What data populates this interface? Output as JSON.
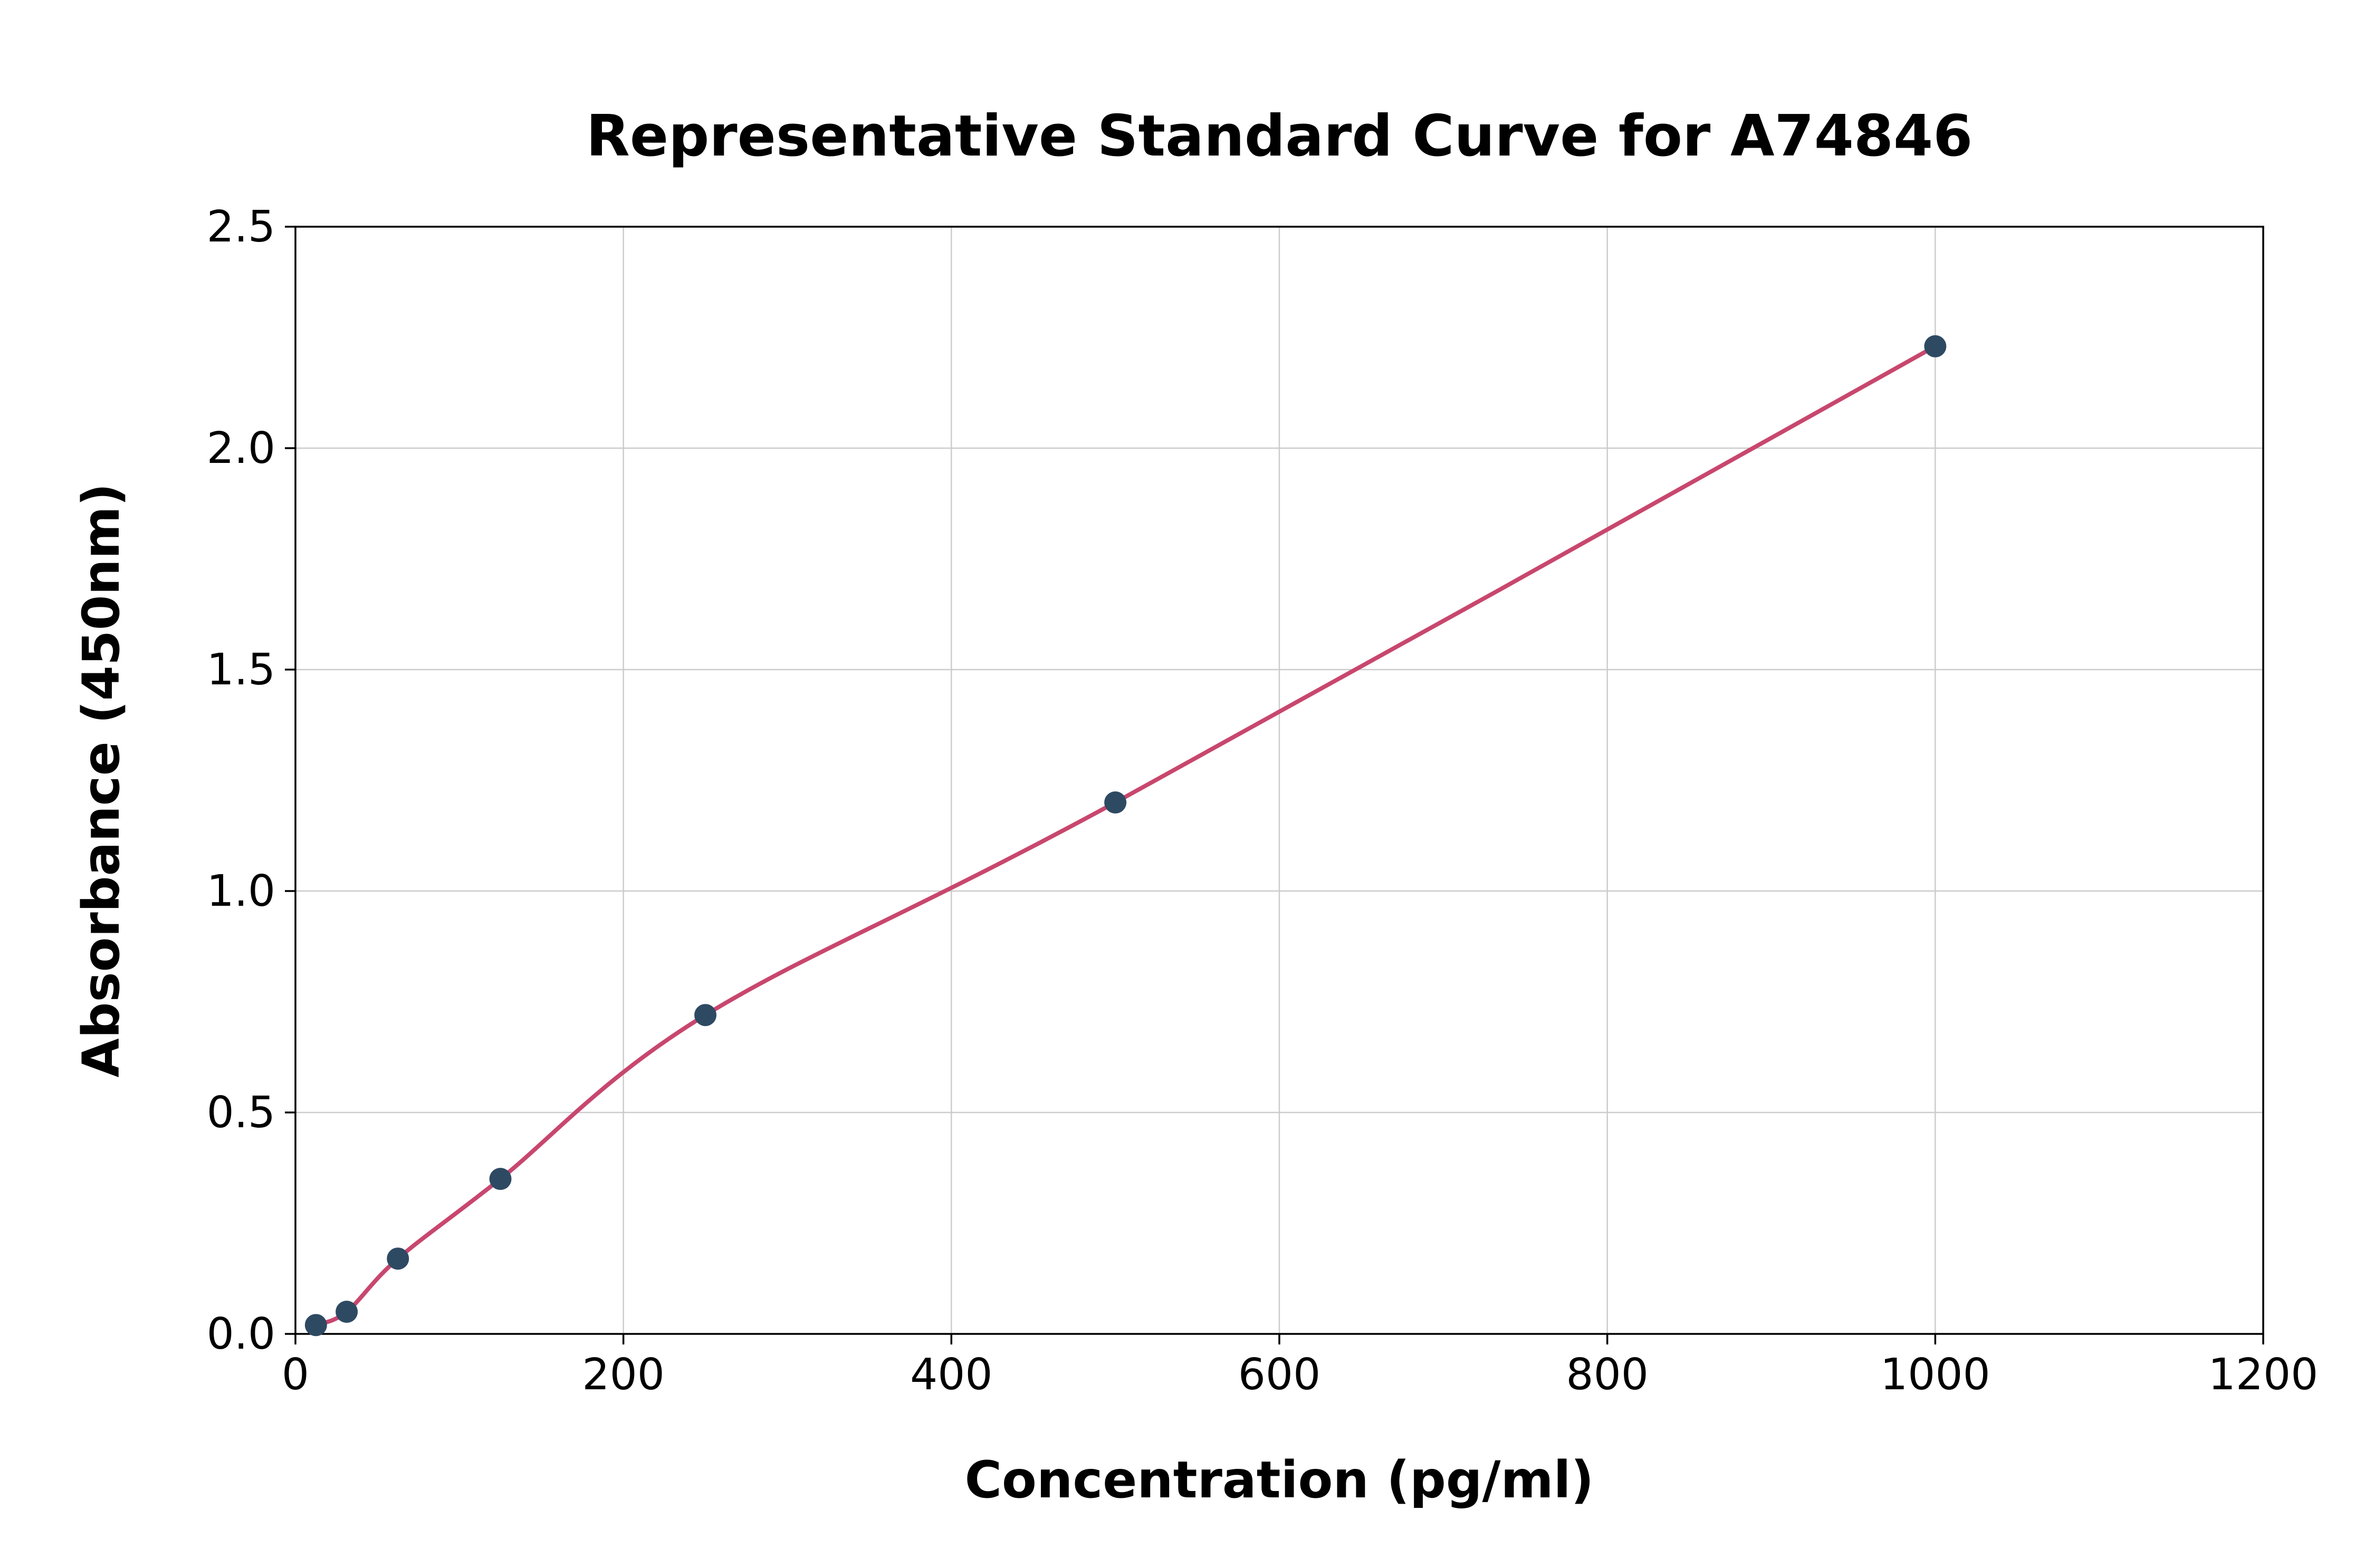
{
  "chart_data": {
    "type": "scatter",
    "title": "Representative Standard Curve for A74846",
    "xlabel": "Concentration (pg/ml)",
    "ylabel": "Absorbance (450nm)",
    "xlim": [
      0,
      1200
    ],
    "ylim": [
      0,
      2.5
    ],
    "x_ticks": [
      0,
      200,
      400,
      600,
      800,
      1000,
      1200
    ],
    "x_tick_labels": [
      "0",
      "200",
      "400",
      "600",
      "800",
      "1000",
      "1200"
    ],
    "y_ticks": [
      0.0,
      0.5,
      1.0,
      1.5,
      2.0,
      2.5
    ],
    "y_tick_labels": [
      "0.0",
      "0.5",
      "1.0",
      "1.5",
      "2.0",
      "2.5"
    ],
    "grid": true,
    "legend": "none",
    "series": [
      {
        "name": "standard-points",
        "type": "scatter",
        "x": [
          12.5,
          31.25,
          62.5,
          125,
          250,
          500,
          1000
        ],
        "y": [
          0.02,
          0.05,
          0.17,
          0.35,
          0.72,
          1.2,
          2.23
        ]
      },
      {
        "name": "fitted-curve",
        "type": "line",
        "x": [
          12.5,
          31.25,
          62.5,
          125,
          250,
          500,
          1000
        ],
        "y": [
          0.02,
          0.05,
          0.17,
          0.35,
          0.72,
          1.2,
          2.23
        ]
      }
    ],
    "colors": {
      "curve": "#c8476e",
      "points": "#2e4a63",
      "grid": "#cccccc",
      "frame": "#000000",
      "background": "#ffffff"
    }
  }
}
